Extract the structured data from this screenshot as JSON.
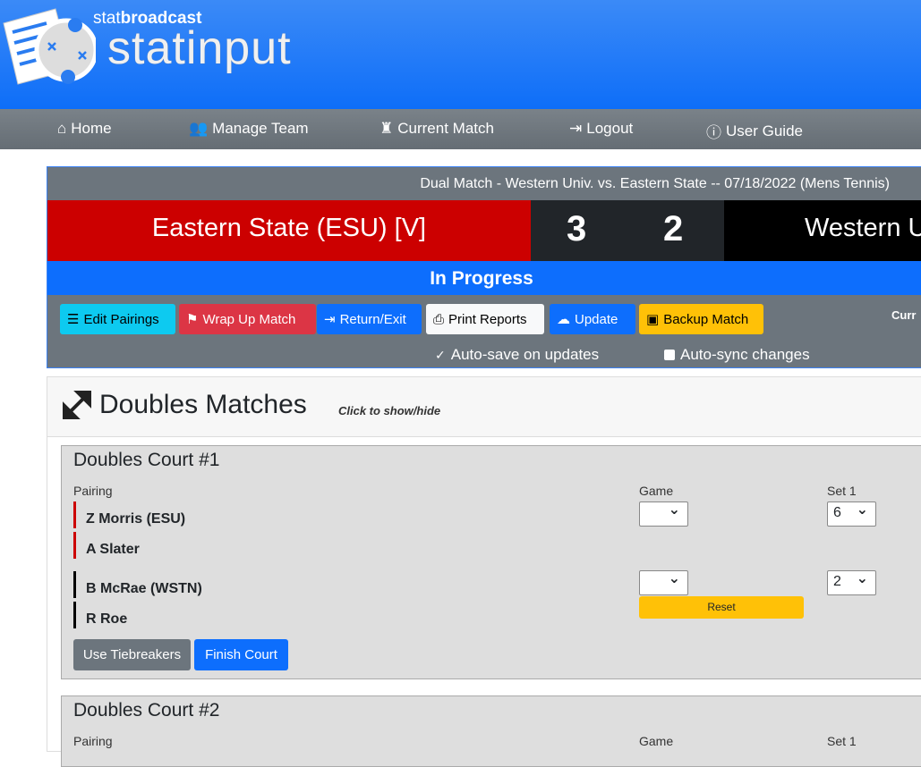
{
  "brand": {
    "small_prefix": "stat",
    "small_suffix": "broadcast",
    "big": "statinput"
  },
  "nav": [
    {
      "label": "Home",
      "icon": "home-icon"
    },
    {
      "label": "Manage Team",
      "icon": "users-icon"
    },
    {
      "label": "Current Match",
      "icon": "chess-icon"
    },
    {
      "label": "Logout",
      "icon": "sign-out-icon"
    },
    {
      "label": "User Guide",
      "icon": "info-icon"
    }
  ],
  "match": {
    "title": "Dual Match - Western Univ. vs. Eastern State -- 07/18/2022 (Mens Tennis)",
    "home_team": "Eastern State (ESU) [V]",
    "home_score": "3",
    "away_score": "2",
    "away_team": "Western U",
    "status": "In Progress",
    "current_label": "Curr"
  },
  "colors": {
    "home": "#cc0000",
    "away": "#000000",
    "primary": "#0d6efd"
  },
  "toolbar": [
    {
      "label": "Edit Pairings",
      "icon": "list-ol-icon"
    },
    {
      "label": "Wrap Up Match",
      "icon": "flag-checkered-icon"
    },
    {
      "label": "Return/Exit",
      "icon": "sign-out-icon"
    },
    {
      "label": "Print Reports",
      "icon": "print-icon"
    },
    {
      "label": "Update",
      "icon": "cloud-icon"
    },
    {
      "label": "Backup Match",
      "icon": "save-icon"
    }
  ],
  "options": {
    "autosave": {
      "label": "Auto-save on updates",
      "checked": true
    },
    "autosync": {
      "label": "Auto-sync changes",
      "checked": false
    }
  },
  "doubles": {
    "title": "Doubles Matches",
    "hint": "Click to show/hide",
    "courts": [
      {
        "title": "Doubles Court #1",
        "pairing_label": "Pairing",
        "game_label": "Game",
        "set_label": "Set 1",
        "team1": [
          "Z Morris (ESU)",
          "A Slater"
        ],
        "team2": [
          "B McRae (WSTN)",
          "R Roe"
        ],
        "team1_game": "",
        "team1_set1": "6",
        "team2_game": "",
        "team2_set1": "2",
        "reset_label": "Reset",
        "tiebreak_label": "Use Tiebreakers",
        "finish_label": "Finish Court"
      },
      {
        "title": "Doubles Court #2",
        "pairing_label": "Pairing",
        "game_label": "Game",
        "set_label": "Set 1"
      }
    ]
  }
}
